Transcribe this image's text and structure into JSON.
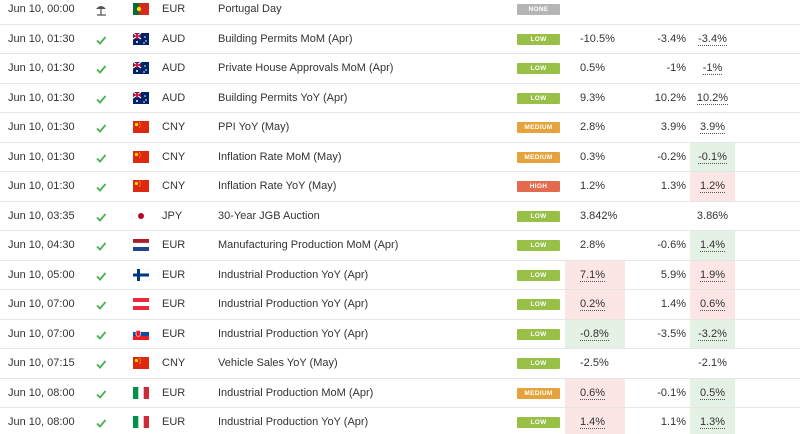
{
  "table": {
    "rows": [
      [
        "Jun 10, 00:00",
        "EUR",
        "Portugal Day",
        "NONE",
        null,
        null,
        null
      ],
      [
        "Jun 10, 01:30",
        "AUD",
        "Building Permits MoM (Apr)",
        "LOW",
        "-10.5%",
        "-3.4%",
        "-3.4%"
      ],
      [
        "Jun 10, 01:30",
        "AUD",
        "Private House Approvals MoM (Apr)",
        "LOW",
        "0.5%",
        "-1%",
        "-1%"
      ],
      [
        "Jun 10, 01:30",
        "AUD",
        "Building Permits YoY (Apr)",
        "LOW",
        "9.3%",
        "10.2%",
        "10.2%"
      ],
      [
        "Jun 10, 01:30",
        "CNY",
        "PPI YoY (May)",
        "MEDIUM",
        "2.8%",
        "3.9%",
        "3.9%"
      ],
      [
        "Jun 10, 01:30",
        "CNY",
        "Inflation Rate MoM (May)",
        "MEDIUM",
        "0.3%",
        "-0.2%",
        "-0.1%"
      ],
      [
        "Jun 10, 01:30",
        "CNY",
        "Inflation Rate YoY (May)",
        "HIGH",
        "1.2%",
        "1.3%",
        "1.2%"
      ],
      [
        "Jun 10, 03:35",
        "JPY",
        "30-Year JGB Auction",
        "LOW",
        "3.842%",
        null,
        "3.86%"
      ],
      [
        "Jun 10, 04:30",
        "EUR",
        "Manufacturing Production MoM (Apr)",
        "LOW",
        "2.8%",
        "-0.6%",
        "1.4%"
      ],
      [
        "Jun 10, 05:00",
        "EUR",
        "Industrial Production YoY (Apr)",
        "LOW",
        "7.1%",
        "5.9%",
        "1.9%"
      ],
      [
        "Jun 10, 07:00",
        "EUR",
        "Industrial Production YoY (Apr)",
        "LOW",
        "0.2%",
        "1.4%",
        "0.6%"
      ],
      [
        "Jun 10, 07:00",
        "EUR",
        "Industrial Production YoY (Apr)",
        "LOW",
        "-0.8%",
        "-3.5%",
        "-3.2%"
      ],
      [
        "Jun 10, 07:15",
        "CNY",
        "Vehicle Sales YoY (May)",
        "LOW",
        "-2.5%",
        null,
        "-2.1%"
      ],
      [
        "Jun 10, 08:00",
        "EUR",
        "Industrial Production MoM (Apr)",
        "MEDIUM",
        "0.6%",
        "-0.1%",
        "0.5%"
      ],
      [
        "Jun 10, 08:00",
        "EUR",
        "Industrial Production YoY (Apr)",
        "LOW",
        "1.4%",
        "1.1%",
        "1.3%"
      ]
    ]
  }
}
